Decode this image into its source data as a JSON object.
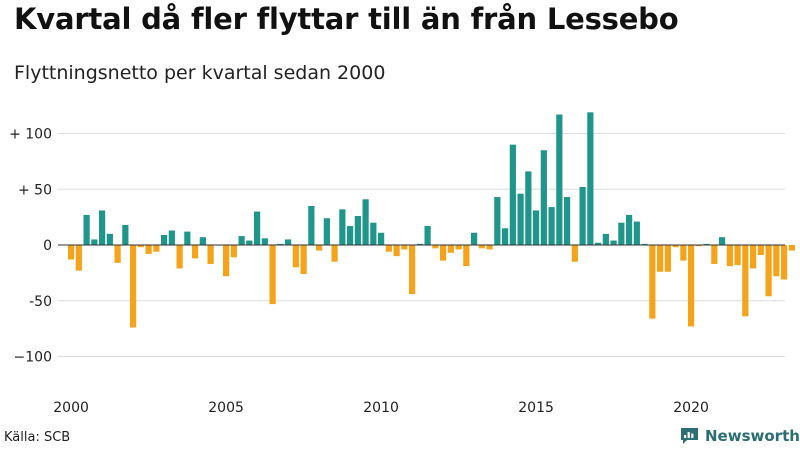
{
  "header": {
    "title": "Kvartal då fler flyttar till än från Lessebo",
    "subtitle": "Flyttningsnetto per kvartal sedan 2000"
  },
  "footer": {
    "source": "Källa: SCB",
    "brand": "Newsworthy"
  },
  "colors": {
    "positive": "#1f968b",
    "negative": "#f5a31a",
    "grid": "#dddddd",
    "brand": "#2b6e73"
  },
  "chart_data": {
    "type": "bar",
    "title": "Kvartal då fler flyttar till än från Lessebo",
    "subtitle": "Flyttningsnetto per kvartal sedan 2000",
    "xlabel": "",
    "ylabel": "",
    "x_start_year": 2000,
    "periods_per_year": 4,
    "ylim": [
      -120,
      120
    ],
    "yticks": [
      {
        "value": 100,
        "label": "+ 100"
      },
      {
        "value": 50,
        "label": "+  50"
      },
      {
        "value": 0,
        "label": "0"
      },
      {
        "value": -50,
        "label": "-50"
      },
      {
        "value": -100,
        "label": "−100"
      }
    ],
    "xticks": [
      {
        "year": 2000,
        "label": "2000"
      },
      {
        "year": 2005,
        "label": "2005"
      },
      {
        "year": 2010,
        "label": "2010"
      },
      {
        "year": 2015,
        "label": "2015"
      },
      {
        "year": 2020,
        "label": "2020"
      }
    ],
    "grid": true,
    "legend": "none",
    "values": [
      -13,
      -23,
      27,
      5,
      31,
      10,
      -16,
      18,
      -74,
      -2,
      -8,
      -6,
      9,
      13,
      -21,
      12,
      -12,
      7,
      -17,
      0,
      -28,
      -11,
      8,
      4,
      30,
      6,
      -53,
      1,
      5,
      -20,
      -26,
      35,
      -5,
      24,
      -15,
      32,
      17,
      26,
      41,
      20,
      11,
      -6,
      -10,
      -4,
      -44,
      1,
      17,
      -3,
      -14,
      -7,
      -4,
      -19,
      11,
      -3,
      -4,
      43,
      15,
      90,
      46,
      66,
      31,
      85,
      34,
      117,
      43,
      -15,
      52,
      119,
      2,
      10,
      4,
      20,
      27,
      21,
      1,
      -66,
      -24,
      -24,
      -2,
      -14,
      -73,
      -1,
      1,
      -17,
      7,
      -19,
      -18,
      -64,
      -21,
      -9,
      -46,
      -28,
      -31,
      -5
    ]
  }
}
